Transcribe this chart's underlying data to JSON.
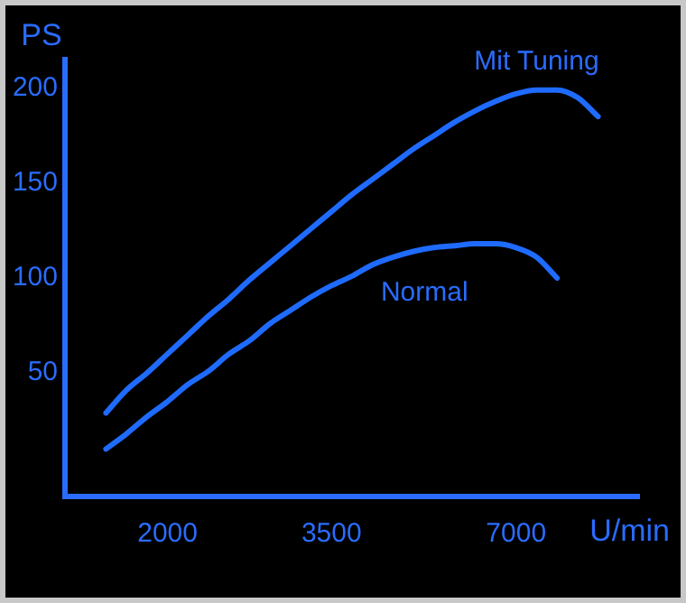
{
  "chart_data": {
    "type": "line",
    "ylabel": "PS",
    "xlabel": "U/min",
    "categories": [
      null,
      null,
      null,
      null,
      null,
      "2000",
      null,
      null,
      null,
      null,
      null,
      null,
      null,
      "3500",
      null,
      null,
      null,
      null,
      null,
      null,
      null,
      null,
      "7000",
      null,
      null,
      null,
      null,
      null,
      null
    ],
    "series": [
      {
        "name": "Mit Tuning",
        "color": "#1f6bff",
        "values": [
          null,
          null,
          29,
          41,
          50,
          60,
          70,
          80,
          89,
          99,
          108,
          117,
          126,
          135,
          144,
          152,
          160,
          168,
          175,
          182,
          188,
          193,
          197,
          199,
          199,
          195,
          185,
          null,
          null
        ]
      },
      {
        "name": "Normal",
        "color": "#1f6bff",
        "values": [
          null,
          null,
          10,
          18,
          27,
          35,
          44,
          51,
          60,
          67,
          76,
          83,
          90,
          96,
          101,
          107,
          111,
          114,
          116,
          117,
          118,
          118,
          116,
          111,
          100,
          null,
          null,
          null,
          null
        ]
      }
    ],
    "ylim": [
      -15,
      215
    ],
    "yticks": [
      50,
      100,
      150,
      200
    ],
    "grid": false,
    "legend": false,
    "marker": "none",
    "line_style": "solid"
  }
}
